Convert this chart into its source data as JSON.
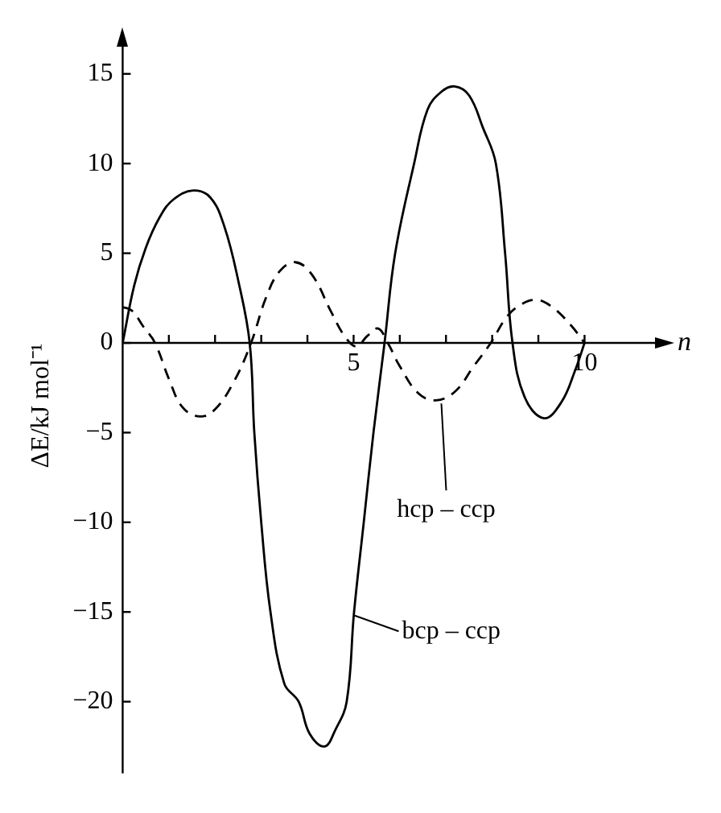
{
  "chart_data": {
    "type": "line",
    "xlabel": "n",
    "ylabel": "ΔE/kJ mol⁻¹",
    "xlim": [
      0,
      11.7
    ],
    "ylim": [
      -24,
      17
    ],
    "xticks": [
      {
        "value": 1,
        "label": null
      },
      {
        "value": 2,
        "label": null
      },
      {
        "value": 3,
        "label": null
      },
      {
        "value": 4,
        "label": null
      },
      5,
      {
        "value": 6,
        "label": null
      },
      {
        "value": 7,
        "label": null
      },
      {
        "value": 8,
        "label": null
      },
      {
        "value": 9,
        "label": null
      },
      10
    ],
    "yticks": [
      -20,
      -15,
      -10,
      -5,
      0,
      5,
      10,
      15
    ],
    "legend": false,
    "marker": "none",
    "series": [
      {
        "color": "#000000",
        "line_style": "solid",
        "x": [
          0,
          0.25,
          0.5,
          0.8,
          1.1,
          1.53,
          1.9,
          2.2,
          2.5,
          2.75,
          2.85,
          3.0,
          3.2,
          3.5,
          3.81,
          4.05,
          4.37,
          4.6,
          4.85,
          5.01,
          5.22,
          5.43,
          5.67,
          5.9,
          6.31,
          6.6,
          6.9,
          7.19,
          7.5,
          7.8,
          8.08,
          8.28,
          8.44,
          8.7,
          9.12,
          9.5,
          9.8,
          10
        ],
        "values": [
          0,
          3.2,
          5.3,
          7,
          8,
          8.5,
          8.1,
          6.5,
          3.5,
          0,
          -5,
          -10,
          -15,
          -19,
          -20,
          -21.8,
          -22.5,
          -21.6,
          -20,
          -15,
          -10,
          -5,
          0,
          5,
          10,
          13,
          14,
          14.3,
          13.8,
          12,
          10,
          5,
          0,
          -3,
          -4.2,
          -3.3,
          -1.5,
          0
        ]
      },
      {
        "color": "#000000",
        "line_style": "dashed",
        "x": [
          0,
          0.2,
          0.45,
          0.7,
          1.0,
          1.3,
          1.68,
          2.0,
          2.4,
          2.78,
          3.1,
          3.4,
          3.74,
          4.1,
          4.5,
          4.8,
          5.06,
          5.3,
          5.53,
          5.74,
          6.0,
          6.4,
          6.78,
          7.2,
          7.6,
          7.97,
          8.3,
          8.6,
          8.96,
          9.3,
          9.7,
          10
        ],
        "values": [
          2,
          1.8,
          0.9,
          0,
          -2,
          -3.6,
          -4.1,
          -3.7,
          -2.2,
          0,
          2.5,
          4,
          4.5,
          3.8,
          1.8,
          0.4,
          -0.2,
          0.4,
          0.8,
          0,
          -1.3,
          -2.8,
          -3.2,
          -2.7,
          -1.3,
          0,
          1.4,
          2.1,
          2.4,
          2,
          1,
          0
        ]
      }
    ],
    "annotations": [
      {
        "text": "hcp – ccp",
        "x": 6.9,
        "y": -3.2
      },
      {
        "text": "bcp – ccp",
        "x": 5.0,
        "y": -15
      }
    ]
  }
}
